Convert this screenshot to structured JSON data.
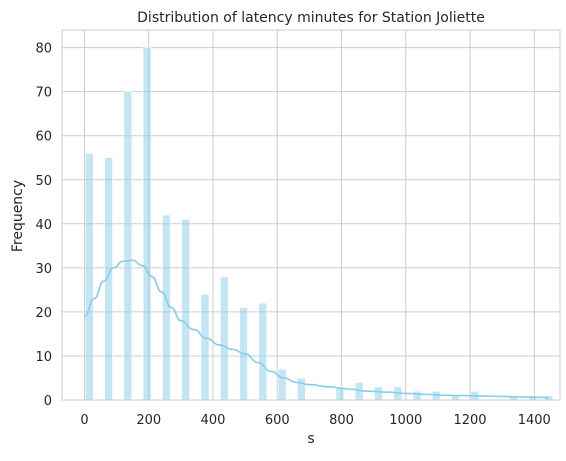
{
  "chart_data": {
    "type": "bar",
    "title": "Distribution of latency minutes for Station Joliette",
    "xlabel": "s",
    "ylabel": "Frequency",
    "xlim": [
      -70,
      1480
    ],
    "ylim": [
      0,
      84
    ],
    "xticks": [
      0,
      200,
      400,
      600,
      800,
      1000,
      1200,
      1400
    ],
    "yticks": [
      0,
      10,
      20,
      30,
      40,
      50,
      60,
      70,
      80
    ],
    "grid": true,
    "bar_color": "#87ceeb",
    "line_color": "#87ceeb",
    "bins": [
      {
        "x": 15,
        "value": 56
      },
      {
        "x": 75,
        "value": 55
      },
      {
        "x": 135,
        "value": 70
      },
      {
        "x": 195,
        "value": 80
      },
      {
        "x": 255,
        "value": 42
      },
      {
        "x": 315,
        "value": 41
      },
      {
        "x": 375,
        "value": 24
      },
      {
        "x": 435,
        "value": 28
      },
      {
        "x": 495,
        "value": 21
      },
      {
        "x": 555,
        "value": 22
      },
      {
        "x": 615,
        "value": 7
      },
      {
        "x": 675,
        "value": 5
      },
      {
        "x": 735,
        "value": 0
      },
      {
        "x": 795,
        "value": 3
      },
      {
        "x": 855,
        "value": 4
      },
      {
        "x": 915,
        "value": 3
      },
      {
        "x": 975,
        "value": 3
      },
      {
        "x": 1035,
        "value": 2
      },
      {
        "x": 1095,
        "value": 2
      },
      {
        "x": 1155,
        "value": 1
      },
      {
        "x": 1215,
        "value": 2
      },
      {
        "x": 1275,
        "value": 0
      },
      {
        "x": 1335,
        "value": 1
      },
      {
        "x": 1395,
        "value": 1
      },
      {
        "x": 1445,
        "value": 1
      }
    ],
    "kde": {
      "x": [
        0,
        30,
        60,
        90,
        120,
        150,
        180,
        210,
        240,
        270,
        300,
        340,
        380,
        420,
        460,
        500,
        540,
        580,
        620,
        660,
        700,
        760,
        820,
        880,
        940,
        1000,
        1060,
        1120,
        1180,
        1240,
        1300,
        1360,
        1420,
        1445
      ],
      "y": [
        19,
        23,
        27,
        30,
        31.5,
        31.7,
        30.5,
        28,
        24.5,
        21,
        18,
        16,
        14,
        12.5,
        11.5,
        10.5,
        8.5,
        6.5,
        5,
        4,
        3.5,
        3,
        2.5,
        2,
        1.8,
        1.5,
        1.3,
        1.1,
        1.0,
        0.9,
        0.8,
        0.7,
        0.6,
        0.5
      ]
    }
  }
}
